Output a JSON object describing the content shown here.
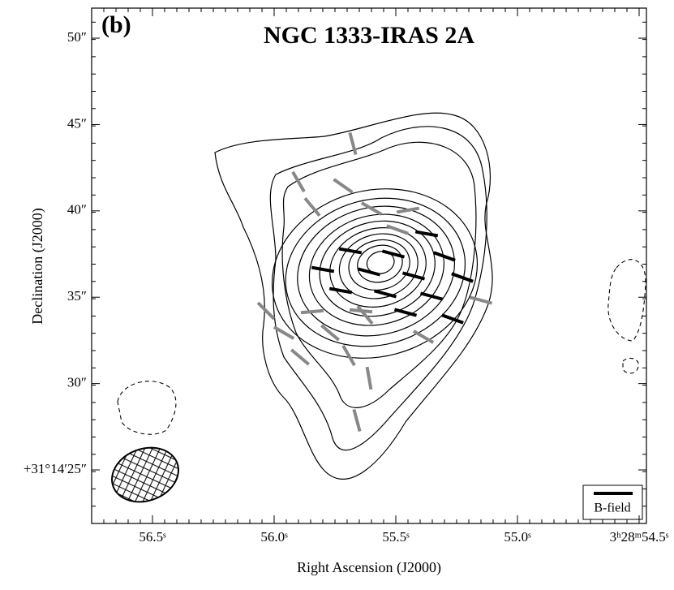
{
  "chart_data": {
    "type": "map",
    "panel_label": "(b)",
    "title": "NGC 1333-IRAS 2A",
    "xlabel": "Right Ascension (J2000)",
    "ylabel": "Declination (J2000)",
    "xlim": [
      56.75,
      54.47
    ],
    "ylim": [
      21.9,
      51.74
    ],
    "xticks": [
      {
        "value": 56.5,
        "label": "56.5ˢ"
      },
      {
        "value": 56.0,
        "label": "56.0ˢ"
      },
      {
        "value": 55.5,
        "label": "55.5ˢ"
      },
      {
        "value": 55.0,
        "label": "55.0ˢ"
      },
      {
        "value": 54.5,
        "label": "3ʰ28ᵐ54.5ˢ"
      }
    ],
    "yticks": [
      {
        "value": 50,
        "label": "50″"
      },
      {
        "value": 45,
        "label": "45″"
      },
      {
        "value": 40,
        "label": "40″"
      },
      {
        "value": 35,
        "label": "35″"
      },
      {
        "value": 30,
        "label": "30″"
      },
      {
        "value": 25,
        "label": "+31°14′25″"
      }
    ],
    "legend": "B-field"
  }
}
